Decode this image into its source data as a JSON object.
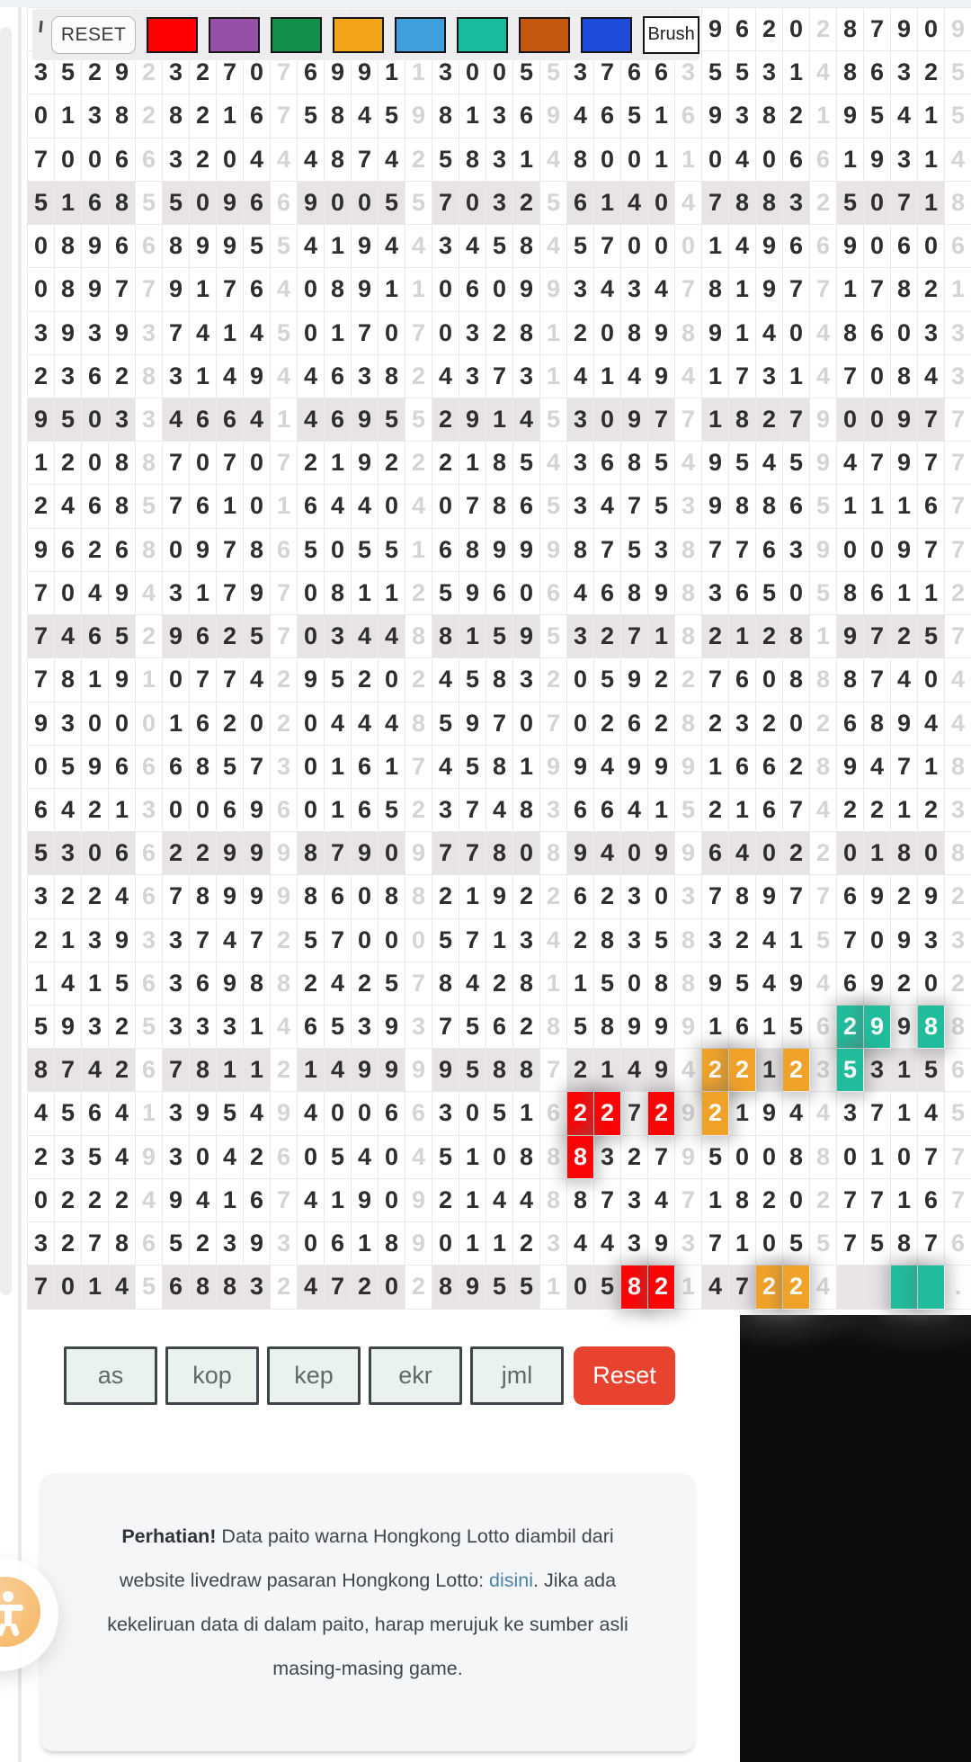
{
  "toolbar": {
    "reset_label": "RESET",
    "brush_label": "Brush",
    "swatches": [
      {
        "name": "red",
        "color": "#fe0000"
      },
      {
        "name": "purple",
        "color": "#9551a7"
      },
      {
        "name": "green",
        "color": "#12914c"
      },
      {
        "name": "orange",
        "color": "#f4a41b"
      },
      {
        "name": "light-blue",
        "color": "#3da0dc"
      },
      {
        "name": "teal",
        "color": "#19bd9d"
      },
      {
        "name": "brown",
        "color": "#c4590e"
      },
      {
        "name": "blue",
        "color": "#1d4cdb"
      }
    ]
  },
  "grid": {
    "cols_per_row": 35,
    "group_size": 5,
    "shaded_rows": [
      5,
      10,
      15,
      20,
      25,
      30
    ],
    "highlight_colors": {
      "red": "#fa0406",
      "orange": "#f0a228",
      "teal": "#20bc9b"
    },
    "highlights": {
      "24-31": "teal",
      "24-32": "teal",
      "24-34": "teal",
      "25-26": "orange",
      "25-27": "orange",
      "25-29": "orange",
      "25-31": "teal",
      "26-21": "red",
      "26-22": "red",
      "26-24": "red",
      "26-26": "orange",
      "27-21": "red",
      "30-23": "red",
      "30-24": "red",
      "30-28": "orange",
      "30-29": "orange",
      "30-33": "teal",
      "30-34": "teal"
    },
    "rows": [
      "                         9620287909",
      "35292327076991130055376635531486325",
      "01382821675845981369465169382195415",
      "70066320444874258314800110406619314",
      "51685509669005570325614047883250718",
      "08966899554194434584570001496690606",
      "08977917640891106099343478197717821",
      "39393741450170703281208989140486033",
      "23628314944638243731414941731470843",
      "95033466414695529145309771827900977",
      "12088707072192221854368549545947977",
      "24685761016440407865347539886511167",
      "96268097865055168999875387763900977",
      "70494317970811259606468983650586112",
      "74652962570344881595327182128197257",
      "78191077429520245832059227608887404",
      "93000162020444859707026282320268944",
      "05966685730161745819949991662894718",
      "64213006960165237483664152167422123",
      "53066229998790977808940996402201808",
      "32246789998608821922623037897769292",
      "21393374725700057134283583241570933",
      "14156369882425784281150889549469202",
      "59325333146539375628589991615629988",
      "87426781121499995887214942212353156",
      "45641395494006630516227292194437145",
      "23549304260540451088832795008801077",
      "02224941674190921448873471820277167",
      "32786523930618901123443937105575876",
      "701456883247202895510582147224    ."
    ]
  },
  "filters": {
    "buttons": [
      "as",
      "kop",
      "kep",
      "ekr",
      "jml"
    ],
    "reset_label": "Reset"
  },
  "notice": {
    "bold": "Perhatian!",
    "before_link": " Data paito warna Hongkong Lotto diambil dari website livedraw pasaran Hongkong Lotto: ",
    "link": "disini",
    "after_link": ". Jika ada kekeliruan data di dalam paito, harap merujuk ke sumber asli masing-masing game."
  }
}
